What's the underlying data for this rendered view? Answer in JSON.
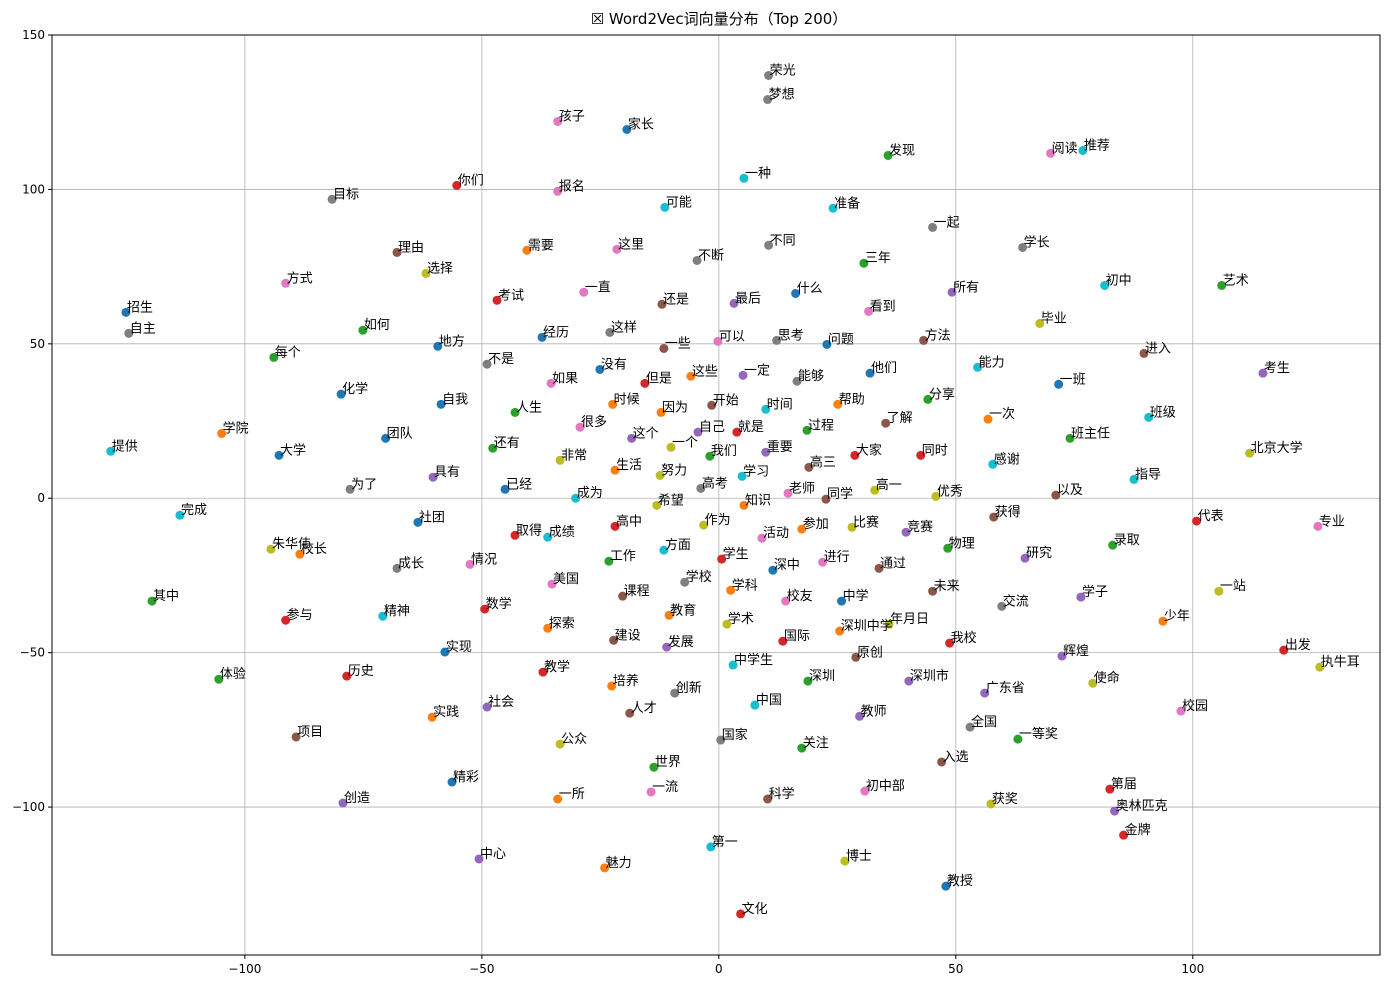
{
  "chart_data": {
    "type": "scatter",
    "title": "☒ Word2Vec词向量分布（Top 200）",
    "xlabel": "",
    "ylabel": "",
    "xlim": [
      -140.7,
      139.5
    ],
    "ylim": [
      -147.9,
      150
    ],
    "xticks": [
      -100,
      -50,
      0,
      50,
      100
    ],
    "yticks": [
      -100,
      -50,
      0,
      50,
      100,
      150
    ],
    "grid": true,
    "palette": [
      "#1f77b4",
      "#ff7f0e",
      "#2ca02c",
      "#d62728",
      "#9467bd",
      "#8c564b",
      "#e377c2",
      "#7f7f7f",
      "#bcbd22",
      "#17becf"
    ],
    "points": [
      {
        "w": "荣光",
        "x": 10.5,
        "y": 136.9,
        "c": 7
      },
      {
        "w": "梦想",
        "x": 10.3,
        "y": 129.1,
        "c": 7
      },
      {
        "w": "孩子",
        "x": -34.0,
        "y": 122.0,
        "c": 6
      },
      {
        "w": "家长",
        "x": -19.4,
        "y": 119.4,
        "c": 0
      },
      {
        "w": "发现",
        "x": 35.7,
        "y": 111.0,
        "c": 2
      },
      {
        "w": "阅读",
        "x": 70.0,
        "y": 111.7,
        "c": 6
      },
      {
        "w": "推荐",
        "x": 76.8,
        "y": 112.6,
        "c": 9
      },
      {
        "w": "一种",
        "x": 5.3,
        "y": 103.6,
        "c": 9
      },
      {
        "w": "你们",
        "x": -55.3,
        "y": 101.3,
        "c": 3
      },
      {
        "w": "报名",
        "x": -34.0,
        "y": 99.4,
        "c": 6
      },
      {
        "w": "目标",
        "x": -81.6,
        "y": 96.8,
        "c": 7
      },
      {
        "w": "可能",
        "x": -11.4,
        "y": 94.2,
        "c": 9
      },
      {
        "w": "准备",
        "x": 24.1,
        "y": 93.9,
        "c": 9
      },
      {
        "w": "一起",
        "x": 45.1,
        "y": 87.7,
        "c": 7
      },
      {
        "w": "不同",
        "x": 10.5,
        "y": 81.9,
        "c": 7
      },
      {
        "w": "学长",
        "x": 64.1,
        "y": 81.2,
        "c": 7
      },
      {
        "w": "需要",
        "x": -40.5,
        "y": 80.3,
        "c": 1
      },
      {
        "w": "这里",
        "x": -21.5,
        "y": 80.6,
        "c": 6
      },
      {
        "w": "理由",
        "x": -67.9,
        "y": 79.6,
        "c": 5
      },
      {
        "w": "不断",
        "x": -4.6,
        "y": 77.0,
        "c": 7
      },
      {
        "w": "三年",
        "x": 30.6,
        "y": 76.1,
        "c": 2
      },
      {
        "w": "选择",
        "x": -61.8,
        "y": 72.8,
        "c": 8
      },
      {
        "w": "方式",
        "x": -91.4,
        "y": 69.6,
        "c": 6
      },
      {
        "w": "初中",
        "x": 81.4,
        "y": 68.9,
        "c": 9
      },
      {
        "w": "艺术",
        "x": 106.1,
        "y": 68.9,
        "c": 2
      },
      {
        "w": "一直",
        "x": -28.5,
        "y": 66.7,
        "c": 6
      },
      {
        "w": "所有",
        "x": 49.2,
        "y": 66.7,
        "c": 4
      },
      {
        "w": "什么",
        "x": 16.2,
        "y": 66.3,
        "c": 0
      },
      {
        "w": "考试",
        "x": -46.8,
        "y": 64.1,
        "c": 3
      },
      {
        "w": "还是",
        "x": -12.0,
        "y": 62.8,
        "c": 5
      },
      {
        "w": "最后",
        "x": 3.2,
        "y": 63.1,
        "c": 4
      },
      {
        "w": "看到",
        "x": 31.6,
        "y": 60.5,
        "c": 6
      },
      {
        "w": "招生",
        "x": -125.1,
        "y": 60.2,
        "c": 0
      },
      {
        "w": "毕业",
        "x": 67.7,
        "y": 56.6,
        "c": 8
      },
      {
        "w": "自主",
        "x": -124.5,
        "y": 53.4,
        "c": 7
      },
      {
        "w": "如何",
        "x": -75.1,
        "y": 54.4,
        "c": 2
      },
      {
        "w": "经历",
        "x": -37.3,
        "y": 52.1,
        "c": 0
      },
      {
        "w": "这样",
        "x": -23.0,
        "y": 53.7,
        "c": 7
      },
      {
        "w": "可以",
        "x": -0.2,
        "y": 50.8,
        "c": 6
      },
      {
        "w": "思考",
        "x": 12.2,
        "y": 51.1,
        "c": 7
      },
      {
        "w": "问题",
        "x": 22.8,
        "y": 49.8,
        "c": 0
      },
      {
        "w": "方法",
        "x": 43.2,
        "y": 51.1,
        "c": 5
      },
      {
        "w": "一些",
        "x": -11.6,
        "y": 48.5,
        "c": 5
      },
      {
        "w": "地方",
        "x": -59.3,
        "y": 49.2,
        "c": 0
      },
      {
        "w": "进入",
        "x": 89.7,
        "y": 46.9,
        "c": 5
      },
      {
        "w": "每个",
        "x": -93.9,
        "y": 45.6,
        "c": 2
      },
      {
        "w": "不是",
        "x": -48.9,
        "y": 43.4,
        "c": 7
      },
      {
        "w": "能力",
        "x": 54.6,
        "y": 42.4,
        "c": 9
      },
      {
        "w": "没有",
        "x": -25.1,
        "y": 41.7,
        "c": 0
      },
      {
        "w": "他们",
        "x": 31.9,
        "y": 40.5,
        "c": 0
      },
      {
        "w": "一定",
        "x": 5.1,
        "y": 39.8,
        "c": 4
      },
      {
        "w": "考生",
        "x": 114.8,
        "y": 40.5,
        "c": 4
      },
      {
        "w": "这些",
        "x": -5.9,
        "y": 39.5,
        "c": 1
      },
      {
        "w": "但是",
        "x": -15.6,
        "y": 37.2,
        "c": 3
      },
      {
        "w": "如果",
        "x": -35.4,
        "y": 37.2,
        "c": 6
      },
      {
        "w": "能够",
        "x": 16.5,
        "y": 37.9,
        "c": 7
      },
      {
        "w": "一班",
        "x": 71.7,
        "y": 36.9,
        "c": 0
      },
      {
        "w": "化学",
        "x": -79.7,
        "y": 33.7,
        "c": 0
      },
      {
        "w": "分享",
        "x": 44.1,
        "y": 32.0,
        "c": 2
      },
      {
        "w": "帮助",
        "x": 25.1,
        "y": 30.4,
        "c": 1
      },
      {
        "w": "自我",
        "x": -58.6,
        "y": 30.4,
        "c": 0
      },
      {
        "w": "时候",
        "x": -22.4,
        "y": 30.4,
        "c": 1
      },
      {
        "w": "开始",
        "x": -1.5,
        "y": 30.1,
        "c": 5
      },
      {
        "w": "时间",
        "x": 9.9,
        "y": 28.8,
        "c": 9
      },
      {
        "w": "人生",
        "x": -43.0,
        "y": 27.8,
        "c": 2
      },
      {
        "w": "因为",
        "x": -12.2,
        "y": 27.8,
        "c": 1
      },
      {
        "w": "了解",
        "x": 35.2,
        "y": 24.3,
        "c": 5
      },
      {
        "w": "一次",
        "x": 56.8,
        "y": 25.6,
        "c": 1
      },
      {
        "w": "班级",
        "x": 90.7,
        "y": 26.2,
        "c": 9
      },
      {
        "w": "很多",
        "x": -29.3,
        "y": 23.0,
        "c": 6
      },
      {
        "w": "学院",
        "x": -104.9,
        "y": 21.0,
        "c": 1
      },
      {
        "w": "过程",
        "x": 18.6,
        "y": 22.0,
        "c": 2
      },
      {
        "w": "就是",
        "x": 3.8,
        "y": 21.4,
        "c": 3
      },
      {
        "w": "自己",
        "x": -4.4,
        "y": 21.4,
        "c": 4
      },
      {
        "w": "这个",
        "x": -18.4,
        "y": 19.4,
        "c": 4
      },
      {
        "w": "班主任",
        "x": 74.1,
        "y": 19.4,
        "c": 2
      },
      {
        "w": "团队",
        "x": -70.3,
        "y": 19.4,
        "c": 0
      },
      {
        "w": "一个",
        "x": -10.1,
        "y": 16.5,
        "c": 8
      },
      {
        "w": "还有",
        "x": -47.7,
        "y": 16.2,
        "c": 2
      },
      {
        "w": "提供",
        "x": -128.3,
        "y": 15.2,
        "c": 9
      },
      {
        "w": "大学",
        "x": -92.8,
        "y": 13.9,
        "c": 0
      },
      {
        "w": "我们",
        "x": -1.9,
        "y": 13.6,
        "c": 2
      },
      {
        "w": "重要",
        "x": 9.9,
        "y": 14.9,
        "c": 4
      },
      {
        "w": "大家",
        "x": 28.7,
        "y": 13.9,
        "c": 3
      },
      {
        "w": "同时",
        "x": 42.6,
        "y": 13.9,
        "c": 3
      },
      {
        "w": "北京大学",
        "x": 112.0,
        "y": 14.6,
        "c": 8
      },
      {
        "w": "非常",
        "x": -33.5,
        "y": 12.3,
        "c": 8
      },
      {
        "w": "感谢",
        "x": 57.8,
        "y": 11.0,
        "c": 9
      },
      {
        "w": "高三",
        "x": 19.0,
        "y": 10.0,
        "c": 5
      },
      {
        "w": "生活",
        "x": -21.9,
        "y": 9.1,
        "c": 1
      },
      {
        "w": "具有",
        "x": -60.3,
        "y": 6.8,
        "c": 4
      },
      {
        "w": "努力",
        "x": -12.4,
        "y": 7.4,
        "c": 8
      },
      {
        "w": "学习",
        "x": 4.9,
        "y": 7.1,
        "c": 9
      },
      {
        "w": "指导",
        "x": 87.6,
        "y": 6.1,
        "c": 9
      },
      {
        "w": "为了",
        "x": -77.8,
        "y": 2.9,
        "c": 7
      },
      {
        "w": "高考",
        "x": -3.8,
        "y": 3.2,
        "c": 7
      },
      {
        "w": "已经",
        "x": -45.1,
        "y": 2.9,
        "c": 0
      },
      {
        "w": "老师",
        "x": 14.6,
        "y": 1.6,
        "c": 6
      },
      {
        "w": "高一",
        "x": 32.9,
        "y": 2.6,
        "c": 8
      },
      {
        "w": "以及",
        "x": 71.1,
        "y": 1.0,
        "c": 5
      },
      {
        "w": "优秀",
        "x": 45.8,
        "y": 0.6,
        "c": 8
      },
      {
        "w": "成为",
        "x": -30.2,
        "y": 0.0,
        "c": 9
      },
      {
        "w": "同学",
        "x": 22.6,
        "y": -0.3,
        "c": 5
      },
      {
        "w": "希望",
        "x": -13.1,
        "y": -2.3,
        "c": 8
      },
      {
        "w": "知识",
        "x": 5.3,
        "y": -2.3,
        "c": 1
      },
      {
        "w": "完成",
        "x": -113.7,
        "y": -5.5,
        "c": 9
      },
      {
        "w": "获得",
        "x": 58.0,
        "y": -6.1,
        "c": 5
      },
      {
        "w": "代表",
        "x": 100.8,
        "y": -7.4,
        "c": 3
      },
      {
        "w": "专业",
        "x": 126.4,
        "y": -9.1,
        "c": 6
      },
      {
        "w": "社团",
        "x": -63.5,
        "y": -7.8,
        "c": 0
      },
      {
        "w": "作为",
        "x": -3.2,
        "y": -8.7,
        "c": 8
      },
      {
        "w": "参加",
        "x": 17.5,
        "y": -10.0,
        "c": 1
      },
      {
        "w": "比赛",
        "x": 28.1,
        "y": -9.4,
        "c": 8
      },
      {
        "w": "竞赛",
        "x": 39.5,
        "y": -11.0,
        "c": 4
      },
      {
        "w": "取得",
        "x": -43.0,
        "y": -12.0,
        "c": 3
      },
      {
        "w": "高中",
        "x": -21.9,
        "y": -9.1,
        "c": 3
      },
      {
        "w": "成绩",
        "x": -36.1,
        "y": -12.6,
        "c": 9
      },
      {
        "w": "活动",
        "x": 9.1,
        "y": -12.9,
        "c": 6
      },
      {
        "w": "物理",
        "x": 48.3,
        "y": -16.2,
        "c": 2
      },
      {
        "w": "录取",
        "x": 83.1,
        "y": -15.2,
        "c": 2
      },
      {
        "w": "朱华伟",
        "x": -94.5,
        "y": -16.5,
        "c": 8
      },
      {
        "w": "校长",
        "x": -88.4,
        "y": -18.1,
        "c": 1
      },
      {
        "w": "方面",
        "x": -11.6,
        "y": -16.8,
        "c": 9
      },
      {
        "w": "研究",
        "x": 64.6,
        "y": -19.4,
        "c": 4
      },
      {
        "w": "工作",
        "x": -23.2,
        "y": -20.4,
        "c": 2
      },
      {
        "w": "学生",
        "x": 0.6,
        "y": -19.7,
        "c": 3
      },
      {
        "w": "进行",
        "x": 21.9,
        "y": -20.7,
        "c": 6
      },
      {
        "w": "深中",
        "x": 11.4,
        "y": -23.3,
        "c": 0
      },
      {
        "w": "通过",
        "x": 33.8,
        "y": -22.7,
        "c": 5
      },
      {
        "w": "情况",
        "x": -52.5,
        "y": -21.4,
        "c": 6
      },
      {
        "w": "成长",
        "x": -67.9,
        "y": -22.7,
        "c": 7
      },
      {
        "w": "美国",
        "x": -35.2,
        "y": -27.8,
        "c": 6
      },
      {
        "w": "学校",
        "x": -7.2,
        "y": -27.2,
        "c": 7
      },
      {
        "w": "学科",
        "x": 2.5,
        "y": -29.8,
        "c": 1
      },
      {
        "w": "未来",
        "x": 45.1,
        "y": -30.1,
        "c": 5
      },
      {
        "w": "一站",
        "x": 105.5,
        "y": -30.1,
        "c": 8
      },
      {
        "w": "其中",
        "x": -119.6,
        "y": -33.3,
        "c": 2
      },
      {
        "w": "课程",
        "x": -20.3,
        "y": -31.7,
        "c": 5
      },
      {
        "w": "校友",
        "x": 14.1,
        "y": -33.3,
        "c": 6
      },
      {
        "w": "中学",
        "x": 25.9,
        "y": -33.3,
        "c": 0
      },
      {
        "w": "学子",
        "x": 76.4,
        "y": -32.0,
        "c": 4
      },
      {
        "w": "交流",
        "x": 59.7,
        "y": -35.0,
        "c": 7
      },
      {
        "w": "数学",
        "x": -49.4,
        "y": -35.9,
        "c": 3
      },
      {
        "w": "参与",
        "x": -91.4,
        "y": -39.5,
        "c": 3
      },
      {
        "w": "精神",
        "x": -70.9,
        "y": -38.2,
        "c": 9
      },
      {
        "w": "教育",
        "x": -10.5,
        "y": -37.9,
        "c": 1
      },
      {
        "w": "少年",
        "x": 93.7,
        "y": -39.8,
        "c": 1
      },
      {
        "w": "探索",
        "x": -36.1,
        "y": -42.1,
        "c": 1
      },
      {
        "w": "学术",
        "x": 1.7,
        "y": -40.8,
        "c": 8
      },
      {
        "w": "年月日",
        "x": 35.9,
        "y": -40.8,
        "c": 8
      },
      {
        "w": "深圳中学",
        "x": 25.5,
        "y": -43.0,
        "c": 1
      },
      {
        "w": "建设",
        "x": -22.2,
        "y": -46.0,
        "c": 5
      },
      {
        "w": "我校",
        "x": 48.7,
        "y": -46.9,
        "c": 3
      },
      {
        "w": "国际",
        "x": 13.5,
        "y": -46.3,
        "c": 3
      },
      {
        "w": "发展",
        "x": -11.0,
        "y": -48.2,
        "c": 4
      },
      {
        "w": "实现",
        "x": -57.8,
        "y": -49.8,
        "c": 0
      },
      {
        "w": "出发",
        "x": 119.2,
        "y": -49.2,
        "c": 3
      },
      {
        "w": "原创",
        "x": 28.9,
        "y": -51.5,
        "c": 5
      },
      {
        "w": "辉煌",
        "x": 72.4,
        "y": -51.1,
        "c": 4
      },
      {
        "w": "执牛耳",
        "x": 126.8,
        "y": -54.7,
        "c": 8
      },
      {
        "w": "中学生",
        "x": 3.0,
        "y": -54.0,
        "c": 9
      },
      {
        "w": "体验",
        "x": -105.5,
        "y": -58.6,
        "c": 2
      },
      {
        "w": "历史",
        "x": -78.5,
        "y": -57.6,
        "c": 3
      },
      {
        "w": "教学",
        "x": -37.1,
        "y": -56.3,
        "c": 3
      },
      {
        "w": "深圳",
        "x": 18.8,
        "y": -59.2,
        "c": 2
      },
      {
        "w": "深圳市",
        "x": 40.1,
        "y": -59.2,
        "c": 4
      },
      {
        "w": "使命",
        "x": 78.9,
        "y": -59.9,
        "c": 8
      },
      {
        "w": "培养",
        "x": -22.6,
        "y": -60.8,
        "c": 1
      },
      {
        "w": "创新",
        "x": -9.3,
        "y": -63.1,
        "c": 7
      },
      {
        "w": "广东省",
        "x": 56.1,
        "y": -63.1,
        "c": 4
      },
      {
        "w": "社会",
        "x": -48.9,
        "y": -67.6,
        "c": 4
      },
      {
        "w": "实践",
        "x": -60.5,
        "y": -70.9,
        "c": 1
      },
      {
        "w": "中国",
        "x": 7.6,
        "y": -67.0,
        "c": 9
      },
      {
        "w": "人才",
        "x": -18.8,
        "y": -69.6,
        "c": 5
      },
      {
        "w": "校园",
        "x": 97.5,
        "y": -68.9,
        "c": 6
      },
      {
        "w": "教师",
        "x": 29.7,
        "y": -70.6,
        "c": 4
      },
      {
        "w": "全国",
        "x": 53.0,
        "y": -74.1,
        "c": 7
      },
      {
        "w": "项目",
        "x": -89.2,
        "y": -77.3,
        "c": 5
      },
      {
        "w": "国家",
        "x": 0.4,
        "y": -78.3,
        "c": 7
      },
      {
        "w": "公众",
        "x": -33.5,
        "y": -79.6,
        "c": 8
      },
      {
        "w": "一等奖",
        "x": 63.1,
        "y": -78.0,
        "c": 2
      },
      {
        "w": "关注",
        "x": 17.5,
        "y": -80.9,
        "c": 2
      },
      {
        "w": "入选",
        "x": 47.0,
        "y": -85.4,
        "c": 5
      },
      {
        "w": "世界",
        "x": -13.7,
        "y": -87.1,
        "c": 2
      },
      {
        "w": "精彩",
        "x": -56.3,
        "y": -91.9,
        "c": 0
      },
      {
        "w": "第届",
        "x": 82.5,
        "y": -94.2,
        "c": 3
      },
      {
        "w": "一流",
        "x": -14.3,
        "y": -95.1,
        "c": 6
      },
      {
        "w": "初中部",
        "x": 30.8,
        "y": -94.8,
        "c": 6
      },
      {
        "w": "科学",
        "x": 10.3,
        "y": -97.4,
        "c": 5
      },
      {
        "w": "一所",
        "x": -34.0,
        "y": -97.4,
        "c": 1
      },
      {
        "w": "获奖",
        "x": 57.4,
        "y": -99.0,
        "c": 8
      },
      {
        "w": "创造",
        "x": -79.3,
        "y": -98.7,
        "c": 4
      },
      {
        "w": "奥林匹克",
        "x": 83.5,
        "y": -101.3,
        "c": 4
      },
      {
        "w": "金牌",
        "x": 85.4,
        "y": -109.1,
        "c": 3
      },
      {
        "w": "第一",
        "x": -1.7,
        "y": -112.9,
        "c": 9
      },
      {
        "w": "中心",
        "x": -50.6,
        "y": -116.8,
        "c": 4
      },
      {
        "w": "博士",
        "x": 26.6,
        "y": -117.5,
        "c": 8
      },
      {
        "w": "魅力",
        "x": -24.1,
        "y": -119.7,
        "c": 1
      },
      {
        "w": "教授",
        "x": 47.9,
        "y": -125.6,
        "c": 0
      },
      {
        "w": "文化",
        "x": 4.6,
        "y": -134.6,
        "c": 3
      }
    ]
  }
}
